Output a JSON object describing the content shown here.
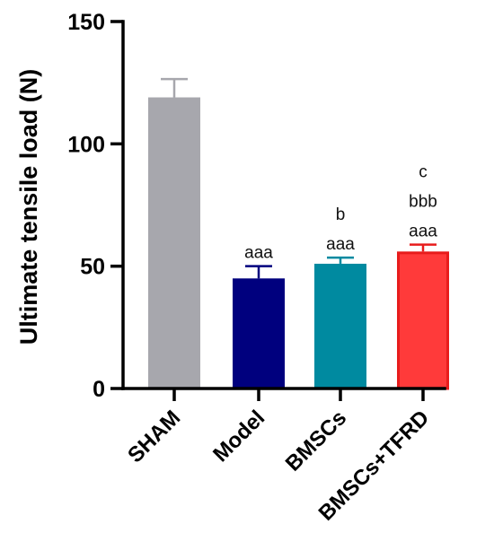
{
  "chart_data": {
    "type": "bar",
    "title": "",
    "xlabel": "",
    "ylabel": "Ultimate tensile load (N)",
    "ylim": [
      0,
      150
    ],
    "yticks": [
      0,
      50,
      100,
      150
    ],
    "grid": false,
    "legend": "none",
    "categories": [
      "SHAM",
      "Model",
      "BMSCs",
      "BMSCs+TFRD"
    ],
    "values": [
      119,
      45,
      51,
      56
    ],
    "errors": [
      7.5,
      5,
      2.5,
      2.8
    ],
    "colors": [
      "#a7a7ad",
      "#00007e",
      "#008aa0",
      "#ff3a3a"
    ],
    "edge_colors": [
      "#a7a7ad",
      "#00007e",
      "#008aa0",
      "#e81c1c"
    ],
    "error_colors": [
      "#a7a7ad",
      "#00007e",
      "#008aa0",
      "#e81c1c"
    ],
    "annotations": [
      [],
      [
        "aaa"
      ],
      [
        "b",
        "aaa"
      ],
      [
        "c",
        "bbb",
        "aaa"
      ]
    ]
  }
}
